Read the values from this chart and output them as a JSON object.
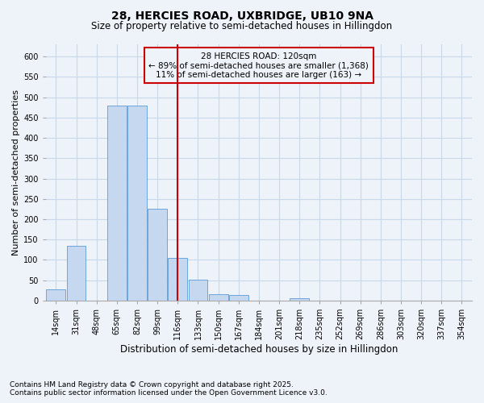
{
  "title_line1": "28, HERCIES ROAD, UXBRIDGE, UB10 9NA",
  "title_line2": "Size of property relative to semi-detached houses in Hillingdon",
  "xlabel": "Distribution of semi-detached houses by size in Hillingdon",
  "ylabel": "Number of semi-detached properties",
  "categories": [
    "14sqm",
    "31sqm",
    "48sqm",
    "65sqm",
    "82sqm",
    "99sqm",
    "116sqm",
    "133sqm",
    "150sqm",
    "167sqm",
    "184sqm",
    "201sqm",
    "218sqm",
    "235sqm",
    "252sqm",
    "269sqm",
    "286sqm",
    "303sqm",
    "320sqm",
    "337sqm",
    "354sqm"
  ],
  "values": [
    27,
    135,
    0,
    480,
    480,
    225,
    105,
    51,
    16,
    13,
    0,
    0,
    5,
    0,
    0,
    0,
    0,
    0,
    0,
    0,
    0
  ],
  "bar_color": "#c5d8f0",
  "bar_edgecolor": "#5b9bd5",
  "vline_x_index": 6,
  "vline_color": "#cc0000",
  "annotation_title": "28 HERCIES ROAD: 120sqm",
  "annotation_line1": "← 89% of semi-detached houses are smaller (1,368)",
  "annotation_line2": "11% of semi-detached houses are larger (163) →",
  "annotation_box_edgecolor": "#cc0000",
  "ylim_max": 630,
  "yticks": [
    0,
    50,
    100,
    150,
    200,
    250,
    300,
    350,
    400,
    450,
    500,
    550,
    600
  ],
  "grid_color": "#c8d8e8",
  "background_color": "#eef3f9",
  "plot_bg_color": "#eef3f9",
  "footnote1": "Contains HM Land Registry data © Crown copyright and database right 2025.",
  "footnote2": "Contains public sector information licensed under the Open Government Licence v3.0.",
  "title_fontsize": 10,
  "subtitle_fontsize": 8.5,
  "ylabel_fontsize": 8,
  "xlabel_fontsize": 8.5,
  "tick_fontsize": 7,
  "annotation_fontsize": 7.5,
  "footnote_fontsize": 6.5
}
